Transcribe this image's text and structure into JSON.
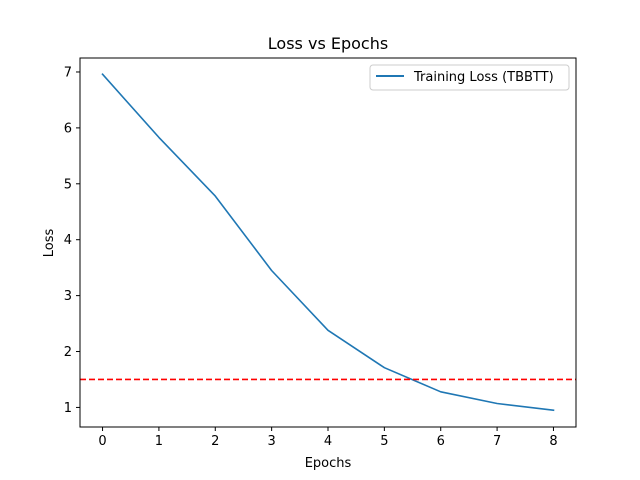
{
  "chart_data": {
    "type": "line",
    "title": "Loss vs Epochs",
    "xlabel": "Epochs",
    "ylabel": "Loss",
    "xlim": [
      -0.4,
      8.4
    ],
    "ylim": [
      0.65,
      7.25
    ],
    "xticks": [
      0,
      1,
      2,
      3,
      4,
      5,
      6,
      7,
      8
    ],
    "yticks": [
      1,
      2,
      3,
      4,
      5,
      6,
      7
    ],
    "grid": false,
    "legend_position": "upper right",
    "series": [
      {
        "name": "Training Loss (TBBTT)",
        "color": "#1f77b4",
        "x": [
          0,
          1,
          2,
          3,
          4,
          5,
          6,
          7,
          8
        ],
        "y": [
          6.96,
          5.83,
          4.78,
          3.45,
          2.38,
          1.71,
          1.28,
          1.07,
          0.95
        ]
      }
    ],
    "reference_lines": [
      {
        "orientation": "horizontal",
        "y": 1.5,
        "color": "#ff0000",
        "style": "dashed"
      }
    ]
  }
}
